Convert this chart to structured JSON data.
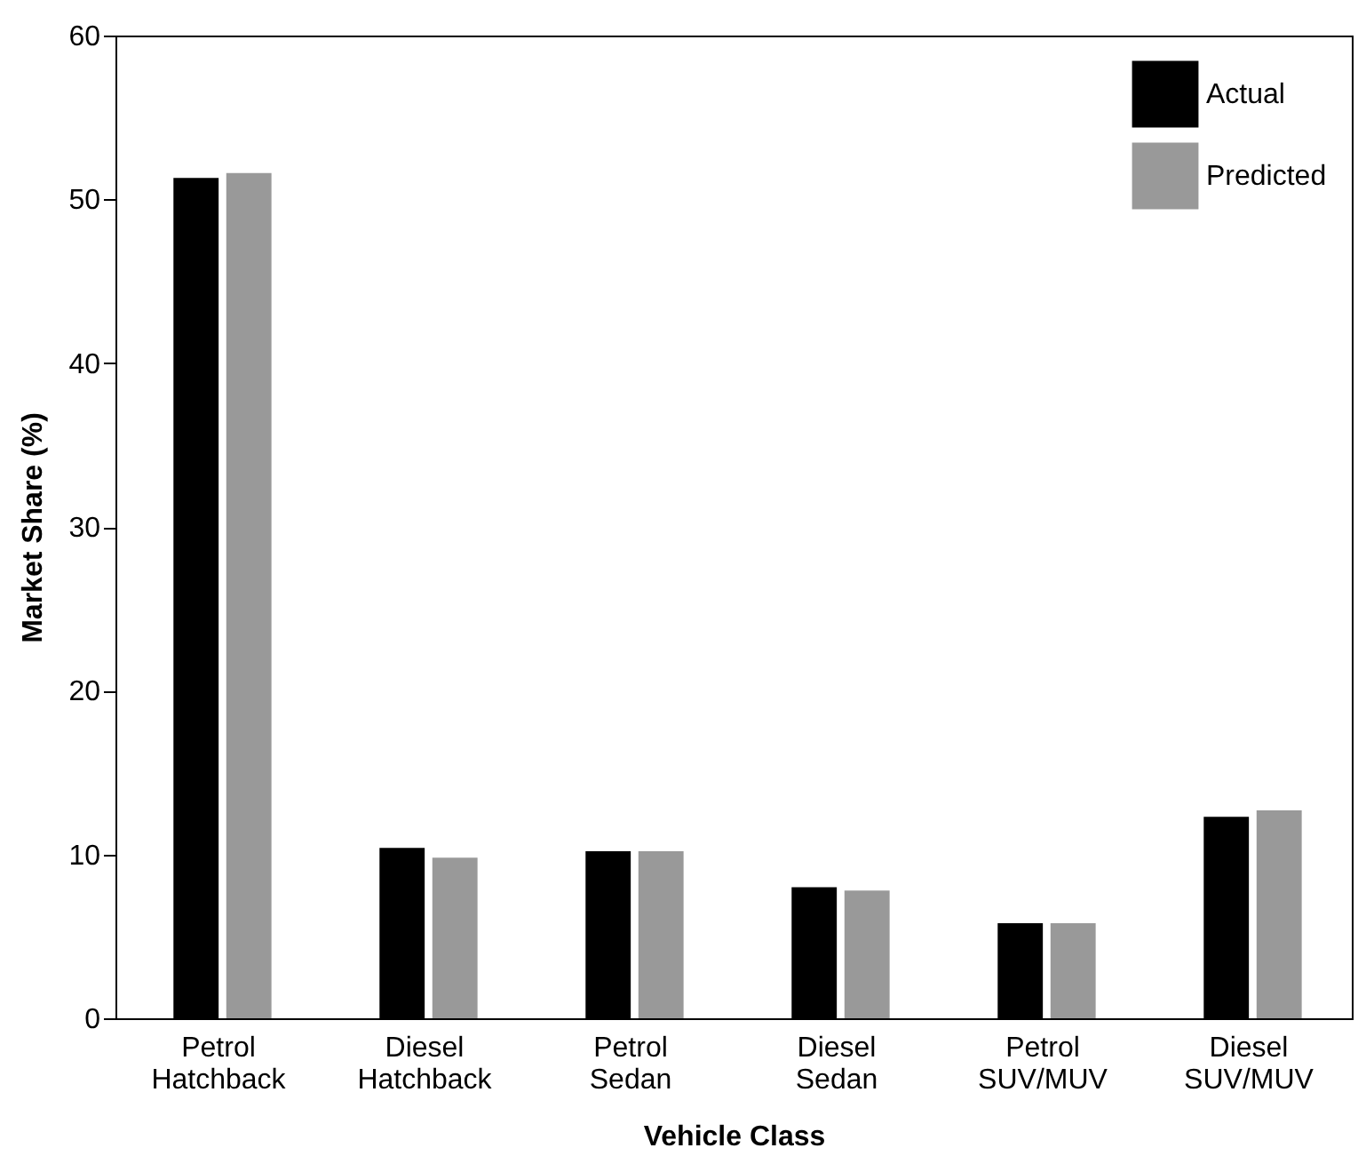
{
  "chart_data": {
    "type": "bar",
    "xlabel": "Vehicle Class",
    "ylabel": "Market Share (%)",
    "categories": [
      "Petrol Hatchback",
      "Diesel Hatchback",
      "Petrol Sedan",
      "Diesel Sedan",
      "Petrol SUV/MUV",
      "Diesel SUV/MUV"
    ],
    "series": [
      {
        "name": "Actual",
        "color": "#000000",
        "values": [
          51.3,
          10.4,
          10.2,
          8.0,
          5.8,
          12.3
        ]
      },
      {
        "name": "Predicted",
        "color": "#999999",
        "values": [
          51.6,
          9.8,
          10.2,
          7.8,
          5.8,
          12.7
        ]
      }
    ],
    "ylim": [
      0,
      60
    ],
    "yticks": [
      0,
      10,
      20,
      30,
      40,
      50,
      60
    ],
    "grid": false,
    "legend": "top right"
  }
}
